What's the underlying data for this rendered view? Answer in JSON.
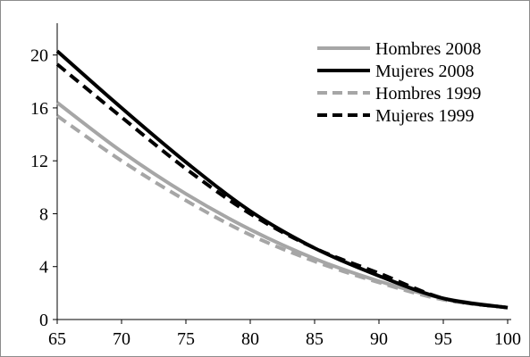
{
  "chart_data": {
    "type": "line",
    "title": "",
    "xlabel": "",
    "ylabel": "",
    "xlim": [
      65,
      100
    ],
    "ylim": [
      0,
      22
    ],
    "x_ticks": [
      65,
      70,
      75,
      80,
      85,
      90,
      95,
      100
    ],
    "y_ticks": [
      0,
      4,
      8,
      12,
      16,
      20
    ],
    "grid": false,
    "legend_position": "top-right",
    "x": [
      65,
      70,
      75,
      80,
      85,
      90,
      95,
      100
    ],
    "series": [
      {
        "name": "Hombres 2008",
        "color": "#a6a6a6",
        "dash": "solid",
        "values": [
          16.4,
          12.7,
          9.5,
          6.8,
          4.6,
          2.9,
          1.6,
          0.9
        ]
      },
      {
        "name": "Mujeres 2008",
        "color": "#000000",
        "dash": "solid",
        "values": [
          20.3,
          16.0,
          11.9,
          8.2,
          5.4,
          3.3,
          1.6,
          0.9
        ]
      },
      {
        "name": "Hombres 1999",
        "color": "#a6a6a6",
        "dash": "dashed",
        "values": [
          15.4,
          12.0,
          9.0,
          6.4,
          4.4,
          2.8,
          1.5,
          0.9
        ]
      },
      {
        "name": "Mujeres 1999",
        "color": "#000000",
        "dash": "dashed",
        "values": [
          19.3,
          15.3,
          11.4,
          8.0,
          5.4,
          3.5,
          1.6,
          0.9
        ]
      }
    ]
  }
}
